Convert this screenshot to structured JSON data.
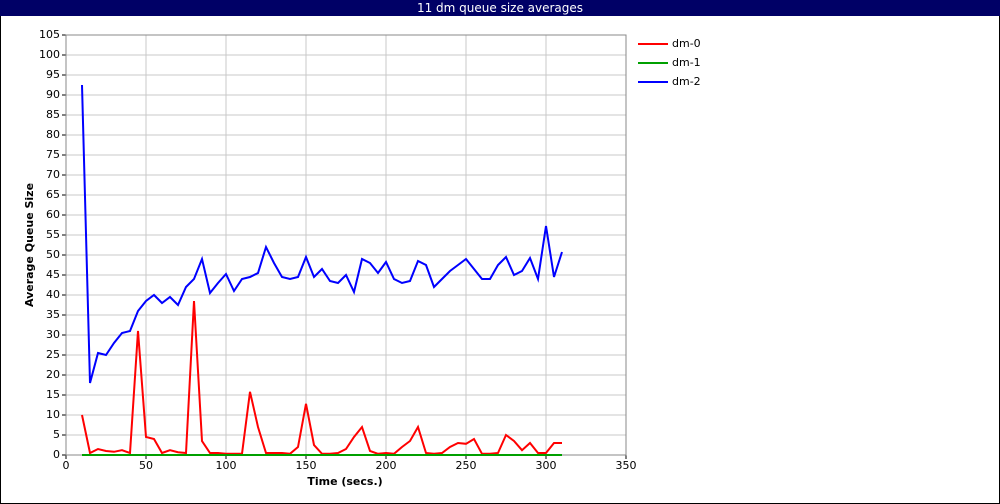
{
  "chart_data": {
    "type": "line",
    "title": "11 dm queue size averages",
    "x_label": "Time (secs.)",
    "y_label": "Average Queue Size",
    "xlim": [
      0,
      350
    ],
    "xticks": [
      0,
      50,
      100,
      150,
      200,
      250,
      300,
      350
    ],
    "ylim": [
      0,
      105
    ],
    "yticks": [
      0,
      5,
      10,
      15,
      20,
      25,
      30,
      35,
      40,
      45,
      50,
      55,
      60,
      65,
      70,
      75,
      80,
      85,
      90,
      95,
      100,
      105
    ],
    "grid": true,
    "legend": "right",
    "x": [
      10,
      15,
      20,
      25,
      30,
      35,
      40,
      45,
      50,
      55,
      60,
      65,
      70,
      75,
      80,
      85,
      90,
      95,
      100,
      105,
      110,
      115,
      120,
      125,
      130,
      135,
      140,
      145,
      150,
      155,
      160,
      165,
      170,
      175,
      180,
      185,
      190,
      195,
      200,
      205,
      210,
      215,
      220,
      225,
      230,
      235,
      240,
      245,
      250,
      255,
      260,
      265,
      270,
      275,
      280,
      285,
      290,
      295,
      300,
      305,
      310
    ],
    "series": [
      {
        "name": "dm-0",
        "color": "#ff0000",
        "values": [
          10,
          0.5,
          1.5,
          1,
          0.8,
          1.2,
          0.5,
          31,
          4.5,
          4,
          0.5,
          1.2,
          0.7,
          0.5,
          38.5,
          3.5,
          0.5,
          0.5,
          0.3,
          0.3,
          0.3,
          15.8,
          7,
          0.5,
          0.5,
          0.5,
          0.3,
          2,
          12.8,
          2.5,
          0.3,
          0.3,
          0.5,
          1.5,
          4.5,
          7,
          1,
          0.3,
          0.5,
          0.3,
          2,
          3.5,
          7,
          0.5,
          0.3,
          0.5,
          2,
          3,
          2.8,
          4,
          0.3,
          0.3,
          0.5,
          5,
          3.5,
          1.2,
          3,
          0.5,
          0.5,
          3,
          3
        ]
      },
      {
        "name": "dm-1",
        "color": "#00a000",
        "values": [
          0,
          0,
          0,
          0,
          0,
          0,
          0,
          0,
          0,
          0,
          0,
          0,
          0,
          0,
          0,
          0,
          0,
          0,
          0,
          0,
          0,
          0,
          0,
          0,
          0,
          0,
          0,
          0,
          0,
          0,
          0,
          0,
          0,
          0,
          0,
          0,
          0,
          0,
          0,
          0,
          0,
          0,
          0,
          0,
          0,
          0,
          0,
          0,
          0,
          0,
          0,
          0,
          0,
          0,
          0,
          0,
          0,
          0,
          0,
          0,
          0
        ]
      },
      {
        "name": "dm-2",
        "color": "#0000ff",
        "values": [
          92.5,
          18,
          25.5,
          25,
          28,
          30.5,
          31,
          36,
          38.5,
          40,
          38,
          39.5,
          37.5,
          42,
          44,
          49,
          40.5,
          43,
          45.25,
          41,
          44,
          44.5,
          45.5,
          52,
          48,
          44.5,
          44,
          44.5,
          49.5,
          44.5,
          46.5,
          43.5,
          43,
          45,
          40.75,
          49,
          48,
          45.5,
          48.25,
          44,
          43,
          43.5,
          48.5,
          47.5,
          42,
          44,
          46,
          47.5,
          49,
          46.5,
          44,
          44,
          47.5,
          49.5,
          45,
          46,
          49.25,
          44,
          57.25,
          44.5,
          50.75
        ]
      }
    ]
  }
}
